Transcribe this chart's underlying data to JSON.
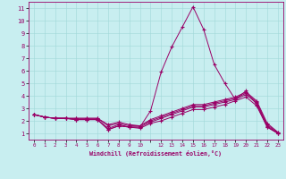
{
  "xlabel": "Windchill (Refroidissement éolien,°C)",
  "bg_color": "#c8eef0",
  "line_color": "#990066",
  "grid_color": "#a0d8d8",
  "x_tick_positions": [
    0,
    1,
    2,
    3,
    4,
    5,
    6,
    7,
    8,
    9,
    10,
    11,
    12,
    13,
    14,
    15,
    16,
    17,
    18,
    19,
    20,
    21,
    22,
    23
  ],
  "x_tick_labels": [
    "0",
    "1",
    "2",
    "3",
    "4",
    "5",
    "6",
    "7",
    "8",
    "9",
    "10",
    "",
    "12",
    "13",
    "14",
    "15",
    "16",
    "17",
    "18",
    "19",
    "20",
    "21",
    "22",
    "23"
  ],
  "y_ticks": [
    1,
    2,
    3,
    4,
    5,
    6,
    7,
    8,
    9,
    10,
    11
  ],
  "xlim": [
    -0.5,
    23.5
  ],
  "ylim": [
    0.5,
    11.5
  ],
  "series": [
    [
      2.5,
      2.3,
      2.2,
      2.2,
      2.1,
      2.1,
      2.1,
      1.3,
      1.6,
      1.5,
      1.5,
      2.8,
      5.9,
      7.9,
      9.5,
      11.1,
      9.3,
      6.5,
      5.0,
      3.7,
      4.4,
      3.3,
      1.5,
      1.0
    ],
    [
      2.5,
      2.3,
      2.2,
      2.2,
      2.1,
      2.1,
      2.1,
      1.3,
      1.6,
      1.5,
      1.4,
      1.8,
      2.0,
      2.3,
      2.6,
      2.9,
      2.9,
      3.1,
      3.3,
      3.6,
      3.9,
      3.2,
      1.5,
      1.0
    ],
    [
      2.5,
      2.3,
      2.2,
      2.2,
      2.1,
      2.1,
      2.1,
      1.4,
      1.7,
      1.5,
      1.5,
      1.9,
      2.2,
      2.5,
      2.8,
      3.1,
      3.1,
      3.3,
      3.5,
      3.7,
      4.1,
      3.4,
      1.6,
      1.0
    ],
    [
      2.5,
      2.3,
      2.2,
      2.2,
      2.2,
      2.2,
      2.2,
      1.6,
      1.8,
      1.6,
      1.6,
      2.0,
      2.3,
      2.6,
      2.9,
      3.2,
      3.2,
      3.4,
      3.6,
      3.8,
      4.2,
      3.5,
      1.7,
      1.05
    ],
    [
      2.5,
      2.3,
      2.2,
      2.2,
      2.2,
      2.2,
      2.2,
      1.7,
      1.9,
      1.7,
      1.6,
      2.1,
      2.4,
      2.7,
      3.0,
      3.3,
      3.3,
      3.5,
      3.7,
      3.9,
      4.3,
      3.6,
      1.8,
      1.1
    ]
  ]
}
